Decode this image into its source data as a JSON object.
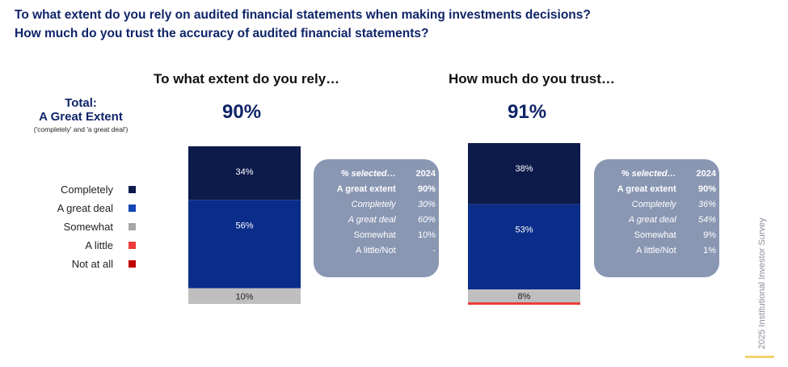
{
  "header": {
    "question_1": "To what extent do you rely on audited financial statements when making investments decisions?",
    "question_2": "How much do you trust the accuracy of audited financial statements?"
  },
  "total": {
    "title_line1": "Total:",
    "title_line2": "A Great Extent",
    "subtitle": "('completely' and 'a great deal')"
  },
  "legend": [
    {
      "label": "Completely",
      "color": "#0d1b4b"
    },
    {
      "label": "A great deal",
      "color": "#1446b8"
    },
    {
      "label": "Somewhat",
      "color": "#a6a6a6"
    },
    {
      "label": "A little",
      "color": "#ee3b3b"
    },
    {
      "label": "Not at all",
      "color": "#c00000"
    }
  ],
  "panels": [
    {
      "title": "To what extent do you rely…",
      "total_value": "90%",
      "table": {
        "header": [
          "% selected…",
          "2024"
        ],
        "rows": [
          {
            "label": "A great extent",
            "value": "90%",
            "style": "bold"
          },
          {
            "label": "Completely",
            "value": "30%",
            "style": "ital"
          },
          {
            "label": "A great deal",
            "value": "60%",
            "style": "ital"
          },
          {
            "label": "Somewhat",
            "value": "10%",
            "style": "plain"
          },
          {
            "label": "A little/Not",
            "value": "-",
            "style": "plain"
          }
        ]
      }
    },
    {
      "title": "How much do you trust…",
      "total_value": "91%",
      "table": {
        "header": [
          "% selected…",
          "2024"
        ],
        "rows": [
          {
            "label": "A great extent",
            "value": "90%",
            "style": "bold"
          },
          {
            "label": "Completely",
            "value": "36%",
            "style": "ital"
          },
          {
            "label": "A great deal",
            "value": "54%",
            "style": "ital"
          },
          {
            "label": "Somewhat",
            "value": "9%",
            "style": "plain"
          },
          {
            "label": "A little/Not",
            "value": "1%",
            "style": "plain"
          }
        ]
      }
    }
  ],
  "chart_data": [
    {
      "type": "bar",
      "stacked": true,
      "title": "To what extent do you rely…",
      "categories": [
        "To what extent do you rely…"
      ],
      "series": [
        {
          "name": "Completely",
          "values": [
            34
          ],
          "label": "34%",
          "color": "#0d1b4b"
        },
        {
          "name": "A great deal",
          "values": [
            56
          ],
          "label": "56%",
          "color": "#0b2d8a"
        },
        {
          "name": "Somewhat",
          "values": [
            10
          ],
          "label": "10%",
          "color": "#bfbfbf"
        },
        {
          "name": "A little",
          "values": [
            0
          ],
          "label": "",
          "color": "#ee3b3b"
        },
        {
          "name": "Not at all",
          "values": [
            0
          ],
          "label": "",
          "color": "#c00000"
        }
      ],
      "ylim": [
        0,
        100
      ]
    },
    {
      "type": "bar",
      "stacked": true,
      "title": "How much do you trust…",
      "categories": [
        "How much do you trust…"
      ],
      "series": [
        {
          "name": "Completely",
          "values": [
            38
          ],
          "label": "38%",
          "color": "#0d1b4b"
        },
        {
          "name": "A great deal",
          "values": [
            53
          ],
          "label": "53%",
          "color": "#0b2d8a"
        },
        {
          "name": "Somewhat",
          "values": [
            8
          ],
          "label": "8%",
          "color": "#bfbfbf"
        },
        {
          "name": "A little",
          "values": [
            1
          ],
          "label": "",
          "color": "#ee3b3b"
        },
        {
          "name": "Not at all",
          "values": [
            0
          ],
          "label": "",
          "color": "#c00000"
        }
      ],
      "ylim": [
        0,
        100
      ]
    }
  ],
  "side_text": "2025 Institutional Investor Survey"
}
